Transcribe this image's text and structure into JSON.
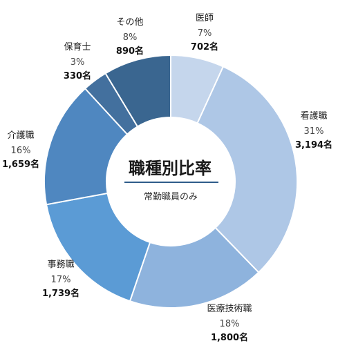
{
  "chart_data": {
    "type": "pie",
    "donut": true,
    "title": "職種別比率",
    "subtitle": "常勤職員のみ",
    "unit": "名",
    "slices": [
      {
        "name": "医師",
        "percent_label": "7%",
        "count_label": "702名",
        "value": 702,
        "color": "#c5d6ec"
      },
      {
        "name": "看護職",
        "percent_label": "31%",
        "count_label": "3,194名",
        "value": 3194,
        "color": "#aec7e6"
      },
      {
        "name": "医療技術職",
        "percent_label": "18%",
        "count_label": "1,800名",
        "value": 1800,
        "color": "#8eb3dd"
      },
      {
        "name": "事務職",
        "percent_label": "17%",
        "count_label": "1,739名",
        "value": 1739,
        "color": "#5b9bd5"
      },
      {
        "name": "介護職",
        "percent_label": "16%",
        "count_label": "1,659名",
        "value": 1659,
        "color": "#4f87c0"
      },
      {
        "name": "保育士",
        "percent_label": "3%",
        "count_label": "330名",
        "value": 330,
        "color": "#43709e"
      },
      {
        "name": "その他",
        "percent_label": "8%",
        "count_label": "890名",
        "value": 890,
        "color": "#3a6690"
      }
    ],
    "start_angle_deg": 0,
    "direction": "clockwise",
    "accent_color": "#2e5c8a"
  }
}
